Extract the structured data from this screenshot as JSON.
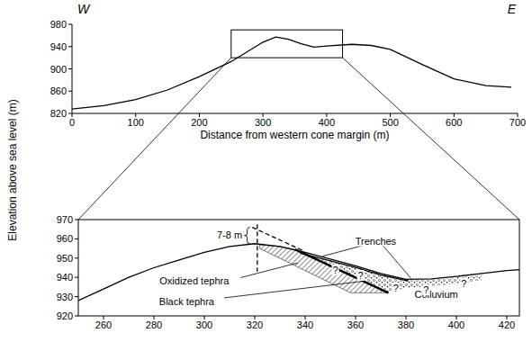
{
  "chart_data": [
    {
      "type": "line",
      "side_labels": [
        "W",
        "E"
      ],
      "xlabel": "Distance from western cone margin (m)",
      "xlim": [
        0,
        700
      ],
      "xticks": [
        0,
        100,
        200,
        300,
        400,
        500,
        600,
        700
      ],
      "ylim": [
        820,
        980
      ],
      "yticks": [
        820,
        860,
        900,
        940,
        980
      ],
      "box_x": [
        250,
        425
      ],
      "box_y": [
        920,
        970
      ],
      "series": [
        {
          "type": "line",
          "color": "#000000",
          "line_style": "solid",
          "x": [
            0,
            50,
            100,
            150,
            200,
            250,
            300,
            320,
            340,
            360,
            380,
            400,
            440,
            470,
            500,
            550,
            600,
            650,
            690
          ],
          "values": [
            828,
            834,
            845,
            862,
            886,
            913,
            948,
            957,
            953,
            945,
            939,
            941,
            944,
            942,
            935,
            908,
            882,
            870,
            867
          ]
        }
      ]
    },
    {
      "type": "line",
      "ylabel": "Elevation above sea level (m)",
      "xlim": [
        250,
        425
      ],
      "xticks": [
        260,
        280,
        300,
        320,
        340,
        360,
        380,
        400,
        420
      ],
      "ylim": [
        920,
        970
      ],
      "yticks": [
        920,
        930,
        940,
        950,
        960,
        970
      ],
      "series": [
        {
          "type": "hatch",
          "color": "#000000",
          "x": [
            322,
            330,
            336,
            373,
            358,
            322
          ],
          "values": [
            957,
            956,
            954.5,
            932,
            932,
            955
          ]
        },
        {
          "type": "stipple",
          "color": "#000000",
          "x": [
            346,
            350,
            360,
            370,
            380,
            390,
            400,
            410,
            410,
            395,
            380,
            373,
            365,
            355,
            346
          ],
          "values": [
            949.5,
            948.5,
            945.5,
            942,
            938.5,
            938.8,
            940,
            941,
            938.5,
            936,
            934.5,
            932,
            936.9,
            942.9,
            948.4
          ]
        },
        {
          "type": "line",
          "color": "#000000",
          "line_style": "solid",
          "x": [
            250,
            260,
            270,
            280,
            290,
            300,
            310,
            320,
            330,
            340,
            350,
            360,
            370,
            380,
            390,
            400,
            410,
            420,
            425
          ],
          "values": [
            928,
            934,
            940,
            945,
            949,
            953,
            956,
            957.5,
            956,
            953,
            949.5,
            946,
            942,
            939,
            939.2,
            940.5,
            942,
            943.5,
            944
          ]
        },
        {
          "type": "line",
          "color": "#000000",
          "line_style": "solid",
          "x": [
            338,
            350,
            360,
            370,
            381
          ],
          "values": [
            952.6,
            948.6,
            945.2,
            941.2,
            938.2
          ]
        },
        {
          "type": "line",
          "color": "#000000",
          "line_style": "bold",
          "x": [
            336,
            373
          ],
          "values": [
            954.5,
            932
          ]
        },
        {
          "type": "line",
          "color": "#000000",
          "line_style": "dashed",
          "x": [
            319,
            339
          ],
          "values": [
            966,
            954
          ]
        },
        {
          "type": "line",
          "color": "#000000",
          "line_style": "dashed",
          "x": [
            321,
            321
          ],
          "values": [
            967.5,
            943
          ]
        }
      ],
      "annotations": [
        {
          "text": "7-8 m",
          "x": 310,
          "y": 962,
          "brace_x": 317,
          "brace_y": [
            957.5,
            966
          ]
        },
        {
          "text": "Trenches",
          "x": 368,
          "y": 959,
          "to": [
            [
              347,
              951
            ],
            [
              382,
              939.5
            ]
          ]
        },
        {
          "text": "Oxidized tephra",
          "x": 296,
          "y": 938,
          "to": [
            [
              337,
              947.5
            ]
          ]
        },
        {
          "text": "Black tephra",
          "x": 293,
          "y": 927.5,
          "to": [
            [
              363,
              938
            ]
          ]
        },
        {
          "text": "Colluvium",
          "x": 392,
          "y": 931
        },
        {
          "text": "?",
          "x": 352,
          "y": 944
        },
        {
          "text": "?",
          "x": 362,
          "y": 941
        },
        {
          "text": "?",
          "x": 376,
          "y": 934.5
        },
        {
          "text": "?",
          "x": 388,
          "y": 933.5
        },
        {
          "text": "?",
          "x": 403,
          "y": 937
        }
      ]
    }
  ]
}
